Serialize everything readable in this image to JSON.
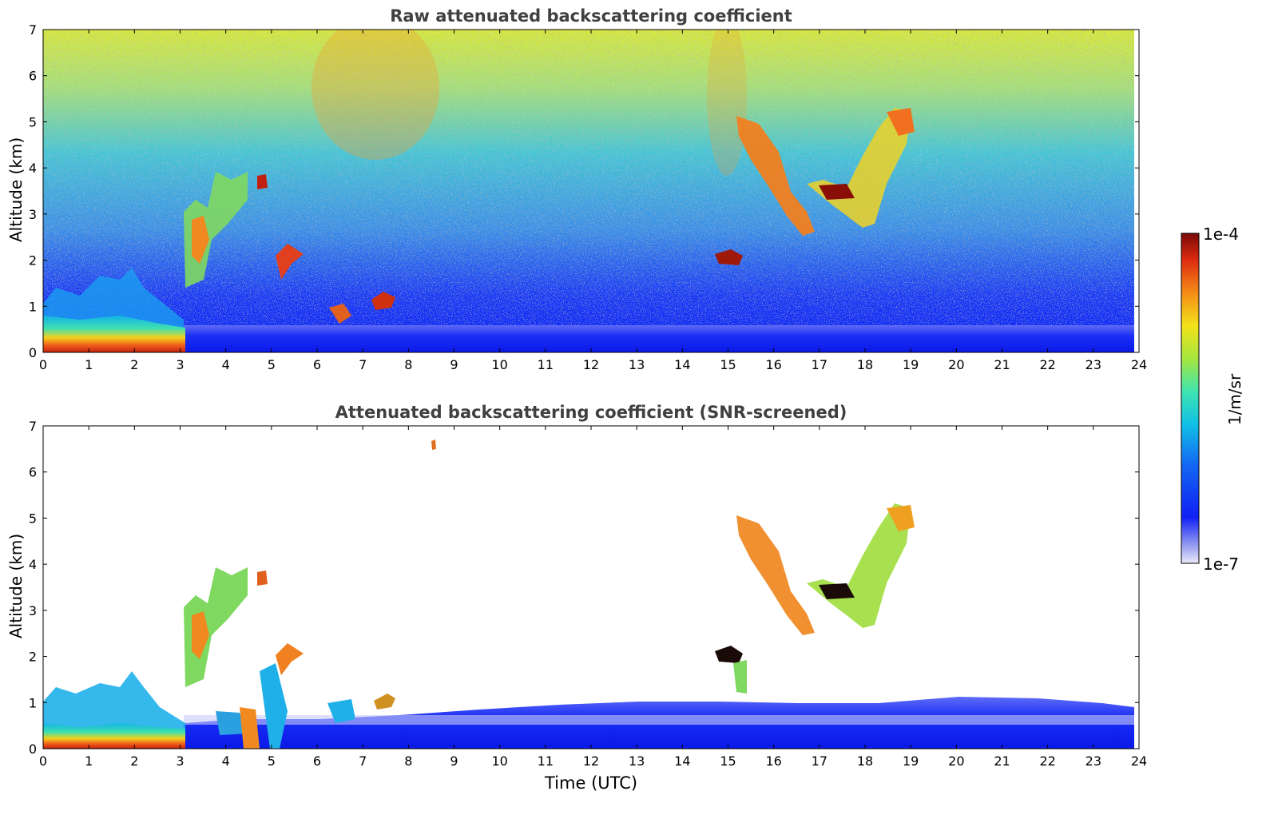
{
  "colorbar": {
    "max_label": "1e-4",
    "min_label": "1e-7",
    "unit": "1/m/sr",
    "colormap": "jet-like (white → blue → cyan → green → yellow → orange → red → dark red)"
  },
  "chart_data": [
    {
      "type": "heatmap",
      "title": "Raw attenuated backscattering coefficient",
      "xlabel": "",
      "ylabel": "Altitude (km)",
      "xlim": [
        0,
        24
      ],
      "ylim": [
        0,
        7
      ],
      "xticks": [
        "0",
        "1",
        "2",
        "3",
        "4",
        "5",
        "6",
        "7",
        "8",
        "9",
        "10",
        "11",
        "12",
        "13",
        "14",
        "15",
        "16",
        "17",
        "18",
        "19",
        "20",
        "21",
        "22",
        "23",
        "24"
      ],
      "yticks": [
        "0",
        "1",
        "2",
        "3",
        "4",
        "5",
        "6",
        "7"
      ],
      "grid": false,
      "features": [
        {
          "desc": "boundary layer aerosol",
          "x": [
            0,
            3.1
          ],
          "y": [
            0,
            0.5
          ],
          "level": "high"
        },
        {
          "desc": "near-surface layer",
          "x": [
            3.1,
            23.9
          ],
          "y": [
            0,
            0.6
          ],
          "level": "low"
        },
        {
          "desc": "cloud",
          "x": [
            3.1,
            4.9
          ],
          "y": [
            1.3,
            4.0
          ],
          "level": "medium-high"
        },
        {
          "desc": "cloud",
          "x": [
            4.7,
            4.9
          ],
          "y": [
            3.6,
            3.9
          ],
          "level": "very high"
        },
        {
          "desc": "cloud",
          "x": [
            5.1,
            5.7
          ],
          "y": [
            1.5,
            2.3
          ],
          "level": "high"
        },
        {
          "desc": "cloud",
          "x": [
            7.2,
            7.6
          ],
          "y": [
            0.9,
            1.3
          ],
          "level": "high"
        },
        {
          "desc": "cloud",
          "x": [
            14.7,
            15.2
          ],
          "y": [
            1.9,
            2.2
          ],
          "level": "very high"
        },
        {
          "desc": "cloud",
          "x": [
            15.2,
            19.1
          ],
          "y": [
            2.6,
            5.4
          ],
          "level": "high"
        }
      ]
    },
    {
      "type": "heatmap",
      "title": "Attenuated backscattering coefficient (SNR-screened)",
      "xlabel": "Time (UTC)",
      "ylabel": "Altitude (km)",
      "xlim": [
        0,
        24
      ],
      "ylim": [
        0,
        7
      ],
      "xticks": [
        "0",
        "1",
        "2",
        "3",
        "4",
        "5",
        "6",
        "7",
        "8",
        "9",
        "10",
        "11",
        "12",
        "13",
        "14",
        "15",
        "16",
        "17",
        "18",
        "19",
        "20",
        "21",
        "22",
        "23",
        "24"
      ],
      "yticks": [
        "0",
        "1",
        "2",
        "3",
        "4",
        "5",
        "6",
        "7"
      ],
      "grid": false,
      "features": [
        {
          "desc": "boundary layer aerosol",
          "x": [
            0,
            3.1
          ],
          "y": [
            0,
            1.6
          ],
          "level": "high near ground"
        },
        {
          "desc": "near-surface layer",
          "x": [
            3.1,
            23.9
          ],
          "y": [
            0,
            0.9
          ],
          "level": "low"
        },
        {
          "desc": "cloud",
          "x": [
            3.1,
            4.9
          ],
          "y": [
            1.2,
            4.0
          ],
          "level": "medium-high"
        },
        {
          "desc": "cloud",
          "x": [
            15.2,
            19.1
          ],
          "y": [
            2.5,
            5.4
          ],
          "level": "high"
        },
        {
          "desc": "cloud",
          "x": [
            14.7,
            15.3
          ],
          "y": [
            1.2,
            2.4
          ],
          "level": "very high"
        }
      ]
    }
  ]
}
